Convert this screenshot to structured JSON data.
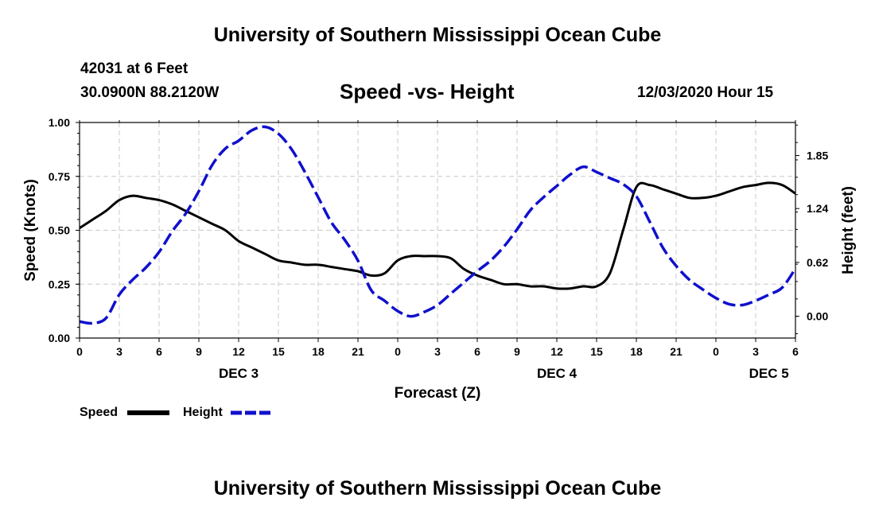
{
  "page": {
    "title_top": "University of Southern Mississippi Ocean Cube",
    "title_bottom": "University of Southern Mississippi Ocean Cube",
    "station": "42031 at 6 Feet",
    "coords": "30.0900N 88.2120W",
    "subtitle": "Speed -vs- Height",
    "datetime": "12/03/2020 Hour 15"
  },
  "legend": {
    "speed_label": "Speed",
    "height_label": "Height"
  },
  "colors": {
    "speed": "#000000",
    "height": "#1010cc",
    "grid": "#c8c8c8"
  },
  "chart_data": {
    "type": "line",
    "title": "Speed -vs- Height",
    "xlabel": "Forecast (Z)",
    "ylabel": "Speed (Knots)",
    "y2label": "Height (feet)",
    "xlim": [
      0,
      54
    ],
    "x_ticks": [
      0,
      3,
      6,
      9,
      12,
      15,
      18,
      21,
      24,
      27,
      30,
      33,
      36,
      39,
      42,
      45,
      48,
      51,
      54
    ],
    "x_tick_labels": [
      "0",
      "3",
      "6",
      "9",
      "12",
      "15",
      "18",
      "21",
      "0",
      "3",
      "6",
      "9",
      "12",
      "15",
      "18",
      "21",
      "0",
      "3",
      "6"
    ],
    "date_labels": [
      {
        "x": 12,
        "label": "DEC 3"
      },
      {
        "x": 36,
        "label": "DEC 4"
      },
      {
        "x": 52,
        "label": "DEC 5"
      }
    ],
    "ylim": [
      0,
      1.0
    ],
    "y_ticks": [
      0,
      0.25,
      0.5,
      0.75,
      1.0
    ],
    "y_tick_labels": [
      "0.00",
      "0.25",
      "0.50",
      "0.75",
      "1.00"
    ],
    "y2lim": [
      -0.25,
      2.23
    ],
    "y2_ticks": [
      0,
      0.62,
      1.24,
      1.85
    ],
    "y2_tick_labels": [
      "0.00",
      "0.62",
      "1.24",
      "1.85"
    ],
    "grid": true,
    "series": [
      {
        "name": "Speed",
        "axis": "left",
        "style": "solid",
        "x": [
          0,
          1,
          2,
          3,
          4,
          5,
          6,
          7,
          8,
          9,
          10,
          11,
          12,
          13,
          14,
          15,
          16,
          17,
          18,
          19,
          20,
          21,
          22,
          23,
          24,
          25,
          26,
          27,
          28,
          29,
          30,
          31,
          32,
          33,
          34,
          35,
          36,
          37,
          38,
          39,
          40,
          41,
          42,
          43,
          44,
          45,
          46,
          47,
          48,
          49,
          50,
          51,
          52,
          53,
          54
        ],
        "values": [
          0.51,
          0.55,
          0.59,
          0.64,
          0.66,
          0.65,
          0.64,
          0.62,
          0.59,
          0.56,
          0.53,
          0.5,
          0.45,
          0.42,
          0.39,
          0.36,
          0.35,
          0.34,
          0.34,
          0.33,
          0.32,
          0.31,
          0.29,
          0.3,
          0.36,
          0.38,
          0.38,
          0.38,
          0.37,
          0.32,
          0.29,
          0.27,
          0.25,
          0.25,
          0.24,
          0.24,
          0.23,
          0.23,
          0.24,
          0.24,
          0.3,
          0.5,
          0.7,
          0.71,
          0.69,
          0.67,
          0.65,
          0.65,
          0.66,
          0.68,
          0.7,
          0.71,
          0.72,
          0.71,
          0.67
        ]
      },
      {
        "name": "Height",
        "axis": "right",
        "style": "dashed",
        "x": [
          0,
          1,
          2,
          3,
          4,
          5,
          6,
          7,
          8,
          9,
          10,
          11,
          12,
          13,
          14,
          15,
          16,
          17,
          18,
          19,
          20,
          21,
          22,
          23,
          24,
          25,
          26,
          27,
          28,
          29,
          30,
          31,
          32,
          33,
          34,
          35,
          36,
          37,
          38,
          39,
          40,
          41,
          42,
          43,
          44,
          45,
          46,
          47,
          48,
          49,
          50,
          51,
          52,
          53,
          54
        ],
        "values": [
          -0.06,
          -0.08,
          -0.02,
          0.25,
          0.42,
          0.56,
          0.74,
          0.98,
          1.18,
          1.44,
          1.74,
          1.93,
          2.02,
          2.14,
          2.18,
          2.1,
          1.92,
          1.66,
          1.37,
          1.08,
          0.88,
          0.64,
          0.3,
          0.18,
          0.06,
          0.0,
          0.05,
          0.13,
          0.26,
          0.39,
          0.52,
          0.64,
          0.8,
          1.0,
          1.22,
          1.37,
          1.5,
          1.63,
          1.72,
          1.66,
          1.59,
          1.52,
          1.38,
          1.09,
          0.79,
          0.58,
          0.42,
          0.31,
          0.21,
          0.14,
          0.13,
          0.18,
          0.25,
          0.33,
          0.55
        ]
      }
    ]
  }
}
